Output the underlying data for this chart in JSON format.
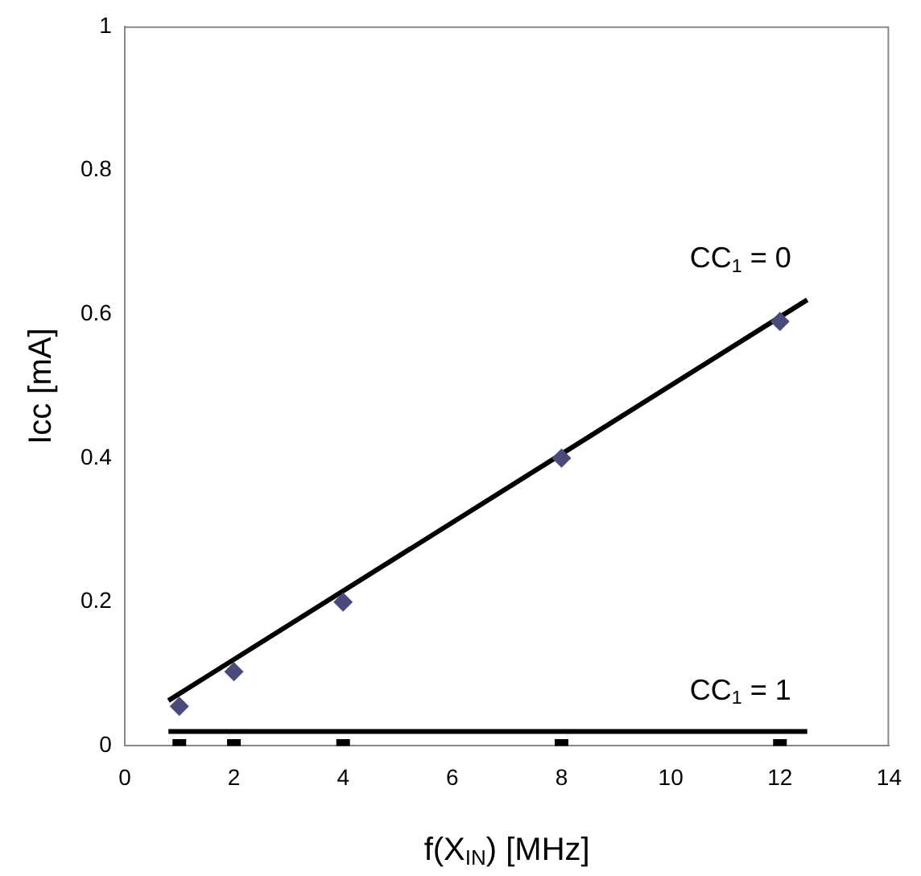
{
  "chart_data": {
    "type": "scatter",
    "xlabel": "f(X$_{IN}$) [MHz]",
    "ylabel": "Icc [mA]",
    "xlim": [
      0,
      14
    ],
    "xticks": [
      0,
      2,
      4,
      6,
      8,
      10,
      12,
      14
    ],
    "ylim": [
      0,
      1
    ],
    "yticks": [
      0,
      0.2,
      0.4,
      0.6,
      0.8,
      1
    ],
    "grid": false,
    "legend": false,
    "series": [
      {
        "marker": "diamond",
        "color": "#4b4a7d",
        "x": [
          1,
          2,
          4,
          8,
          12
        ],
        "values": [
          0.055,
          0.103,
          0.2,
          0.4,
          0.59
        ]
      },
      {
        "marker": "square",
        "color": "#000000",
        "x": [
          1,
          2,
          4,
          8,
          12
        ],
        "values": [
          0,
          0,
          0,
          0,
          0
        ]
      },
      {
        "type": "line",
        "name": "CC$_{1}$ = 0",
        "marker": "none",
        "color": "#000000",
        "x": [
          0.8,
          12.5
        ],
        "values": [
          0.063,
          0.62
        ]
      },
      {
        "type": "line",
        "name": "CC$_{1}$ = 1",
        "marker": "none",
        "color": "#000000",
        "x": [
          0.8,
          12.5
        ],
        "values": [
          0.02,
          0.02
        ]
      }
    ]
  }
}
